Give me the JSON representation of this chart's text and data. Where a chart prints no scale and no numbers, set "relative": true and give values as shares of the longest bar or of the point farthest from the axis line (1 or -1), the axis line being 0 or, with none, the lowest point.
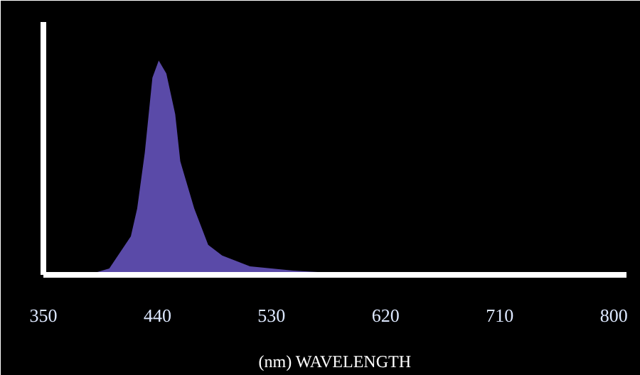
{
  "chart_data": {
    "type": "area",
    "relative": true,
    "xlabel": "(nm) WAVELENGTH",
    "x": [
      385,
      402,
      419,
      424,
      430,
      436,
      441,
      447,
      454,
      458,
      469,
      480,
      491,
      513,
      547,
      591,
      647,
      800
    ],
    "series": [
      {
        "color": "#5a4aa8",
        "values": [
          0,
          0.03,
          0.18,
          0.31,
          0.57,
          0.92,
          1,
          0.94,
          0.75,
          0.53,
          0.31,
          0.14,
          0.09,
          0.04,
          0.02,
          0.005,
          0.003,
          0.003
        ]
      }
    ],
    "xlim": [
      350,
      810
    ],
    "xticks": [
      350,
      440,
      530,
      620,
      710,
      800
    ],
    "grid": false
  }
}
